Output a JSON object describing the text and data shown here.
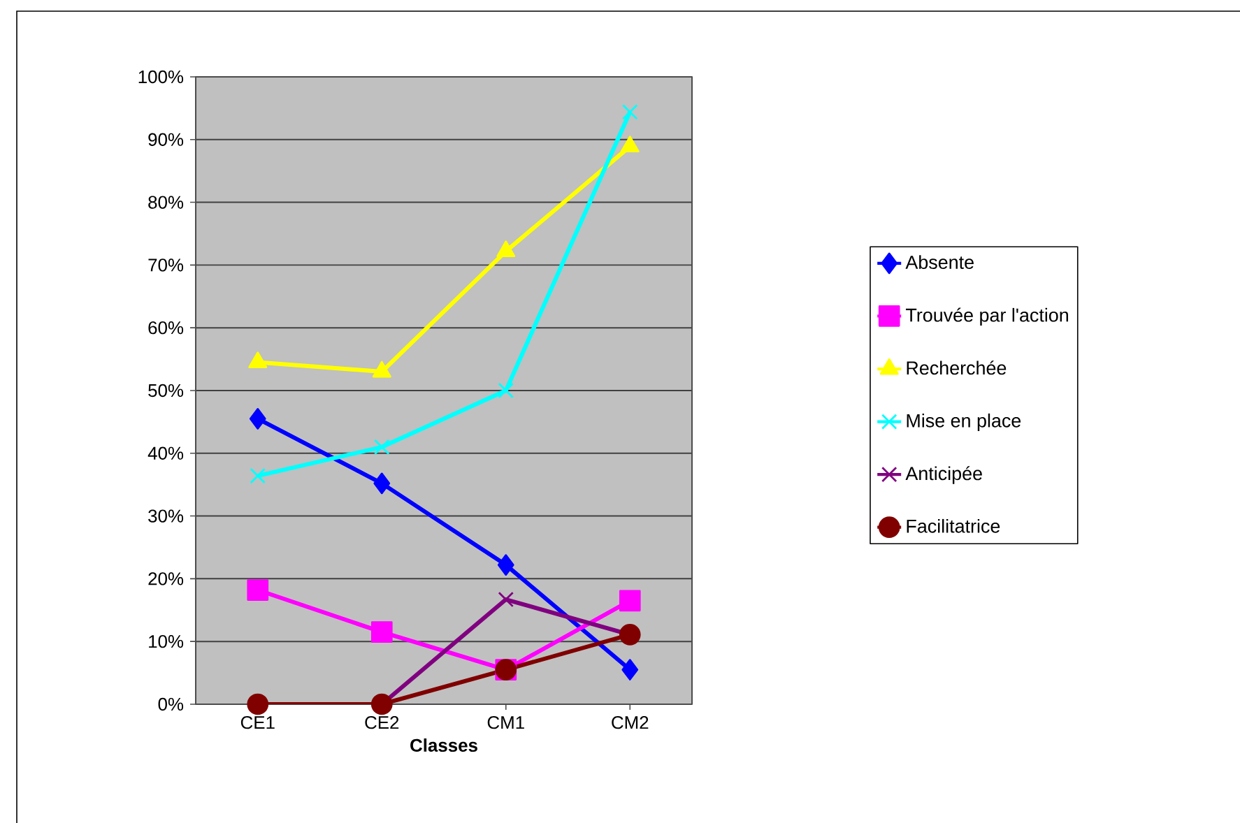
{
  "chart_data": {
    "type": "line",
    "xlabel": "Classes",
    "categories": [
      "CE1",
      "CE2",
      "CM1",
      "CM2"
    ],
    "ylim": [
      0,
      100
    ],
    "yticks": [
      {
        "value": 0,
        "label": "0%"
      },
      {
        "value": 10,
        "label": "10%"
      },
      {
        "value": 20,
        "label": "20%"
      },
      {
        "value": 30,
        "label": "30%"
      },
      {
        "value": 40,
        "label": "40%"
      },
      {
        "value": 50,
        "label": "50%"
      },
      {
        "value": 60,
        "label": "60%"
      },
      {
        "value": 70,
        "label": "70%"
      },
      {
        "value": 80,
        "label": "80%"
      },
      {
        "value": 90,
        "label": "90%"
      },
      {
        "value": 100,
        "label": "100%"
      }
    ],
    "grid": "y",
    "legend": "right",
    "line_style": "solid",
    "series": [
      {
        "name": "Absente",
        "color": "#0000ff",
        "marker": "diamond",
        "values": [
          45.5,
          35.2,
          22.2,
          5.5
        ]
      },
      {
        "name": "Trouvée par l'action",
        "color": "#ff00ff",
        "marker": "square",
        "values": [
          18.2,
          11.5,
          5.5,
          16.5
        ]
      },
      {
        "name": "Recherchée",
        "color": "#ffff00",
        "marker": "triangle",
        "values": [
          54.5,
          53,
          72.2,
          88.9
        ]
      },
      {
        "name": "Mise en place",
        "color": "#00ffff",
        "marker": "cross",
        "values": [
          36.4,
          41,
          50,
          94.4
        ]
      },
      {
        "name": "Anticipée",
        "color": "#800080",
        "marker": "cross",
        "values": [
          0,
          0,
          16.7,
          11.1
        ]
      },
      {
        "name": "Facilitatrice",
        "color": "#800000",
        "marker": "circle",
        "values": [
          0,
          0,
          5.5,
          11.1
        ]
      }
    ]
  }
}
